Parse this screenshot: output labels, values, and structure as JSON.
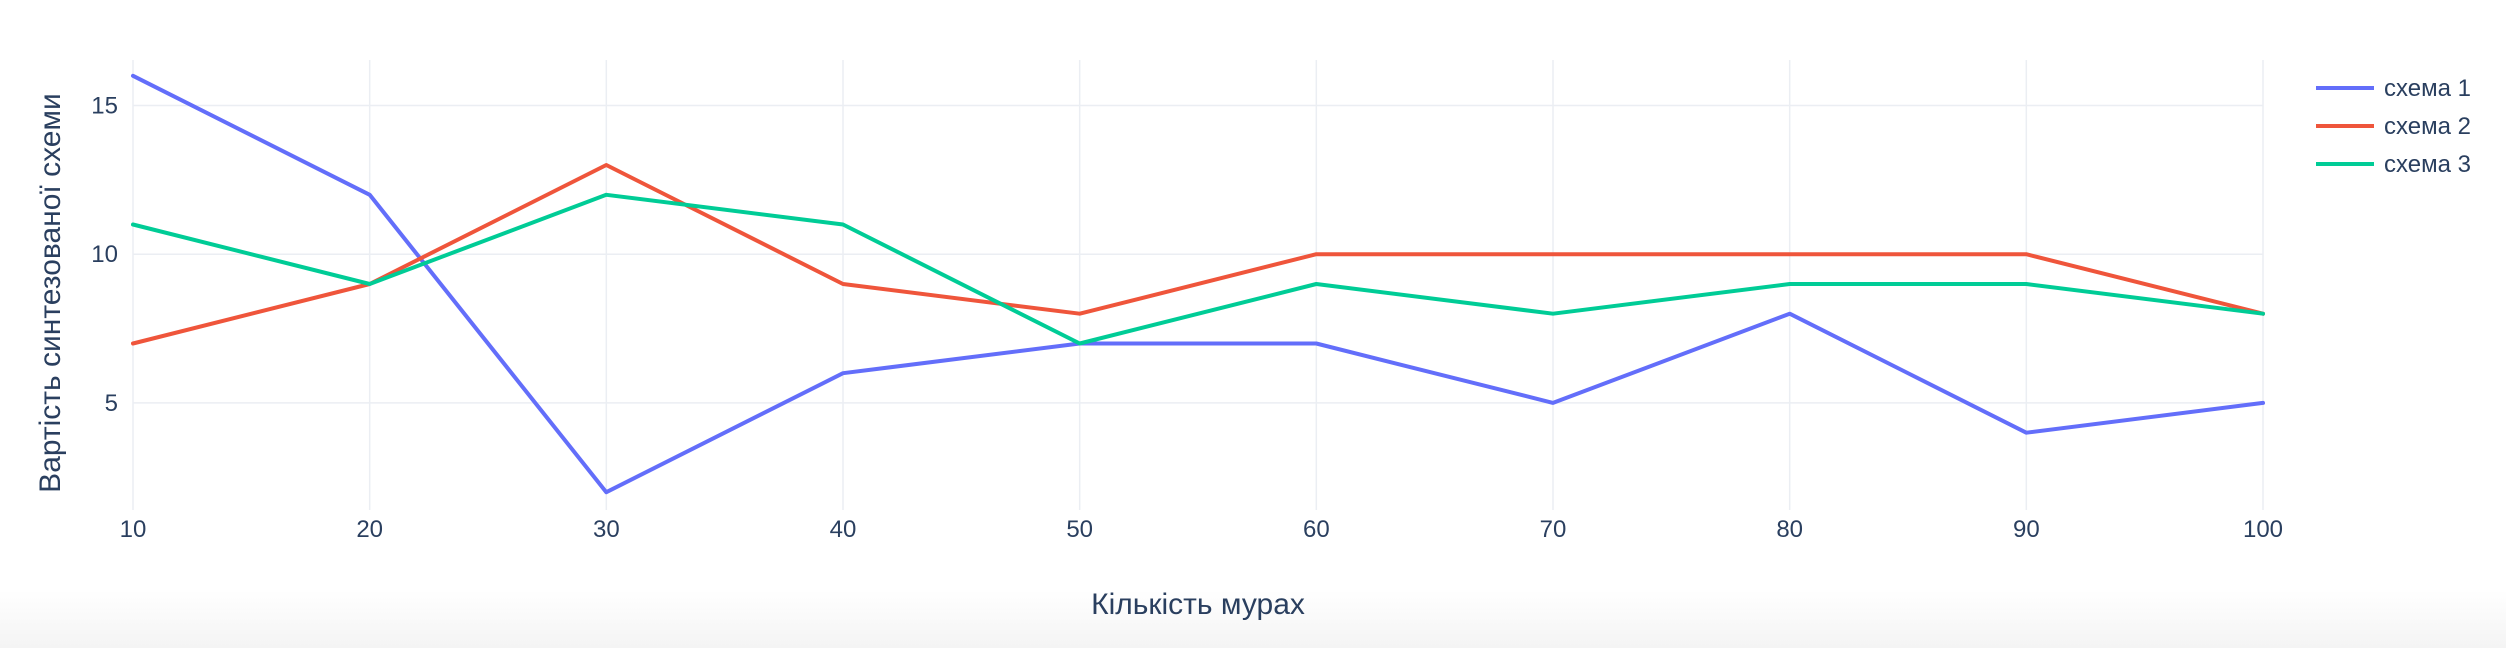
{
  "chart_data": {
    "type": "line",
    "title": "",
    "xlabel": "Кількість мурах",
    "ylabel": "Вартість синтезованої схеми",
    "x": [
      10,
      20,
      30,
      40,
      50,
      60,
      70,
      80,
      90,
      100
    ],
    "xlim": [
      10,
      100
    ],
    "ylim": [
      1.4,
      16.8
    ],
    "x_ticks": [
      10,
      20,
      30,
      40,
      50,
      60,
      70,
      80,
      90,
      100
    ],
    "y_ticks": [
      5,
      10,
      15
    ],
    "grid": true,
    "legend_position": "top-right",
    "series": [
      {
        "name": "схема 1",
        "color": "#636efa",
        "values": [
          16,
          12,
          2,
          6,
          7,
          7,
          5,
          8,
          4,
          5
        ]
      },
      {
        "name": "схема 2",
        "color": "#ef553b",
        "values": [
          7,
          9,
          13,
          9,
          8,
          10,
          10,
          10,
          10,
          8
        ]
      },
      {
        "name": "схема 3",
        "color": "#00cc96",
        "values": [
          11,
          9,
          12,
          11,
          7,
          9,
          8,
          9,
          9,
          8
        ]
      }
    ]
  }
}
